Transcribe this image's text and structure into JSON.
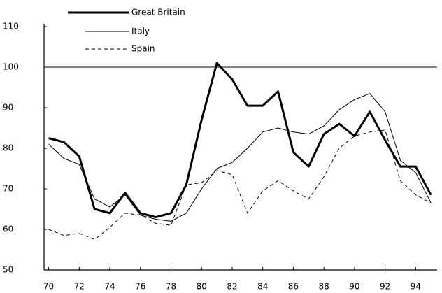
{
  "chart_data": {
    "type": "line",
    "x": [
      70,
      71,
      72,
      73,
      74,
      75,
      76,
      77,
      78,
      79,
      80,
      81,
      82,
      83,
      84,
      85,
      86,
      87,
      88,
      89,
      90,
      91,
      92,
      93,
      94,
      95
    ],
    "xticks": [
      70,
      72,
      74,
      76,
      78,
      80,
      82,
      84,
      86,
      88,
      90,
      92,
      94
    ],
    "xlim": [
      69.7,
      95.4
    ],
    "ylim": [
      50,
      110
    ],
    "yticks": [
      50,
      60,
      70,
      80,
      90,
      100,
      110
    ],
    "reference_line": 100,
    "series": [
      {
        "name": "Great Britain",
        "color": "#000000",
        "line_width": 3,
        "dashed": false,
        "values": [
          82.5,
          81.5,
          78,
          65,
          64,
          69,
          64,
          63,
          64,
          71,
          87,
          101,
          97,
          90.5,
          90.5,
          94,
          79,
          75.5,
          83.5,
          86,
          83,
          89,
          82,
          75.5,
          75.5,
          68.5
        ]
      },
      {
        "name": "Italy",
        "color": "#000000",
        "line_width": 1,
        "dashed": false,
        "values": [
          81,
          77.5,
          76,
          67.5,
          65.5,
          68.5,
          63.5,
          62.5,
          62,
          64,
          70,
          75,
          76.5,
          80,
          84,
          85,
          84,
          83.5,
          85.5,
          89.5,
          92,
          93.5,
          89,
          77,
          74,
          66.5
        ]
      },
      {
        "name": "Spain",
        "color": "#000000",
        "line_width": 1,
        "dashed": true,
        "values": [
          60,
          58.5,
          59,
          57.5,
          60.5,
          64,
          63.5,
          61.5,
          61,
          71,
          71.5,
          74.5,
          73.5,
          64,
          69.5,
          72,
          69.5,
          67.5,
          73,
          80,
          83,
          84,
          84.5,
          72,
          68.5,
          66.5
        ]
      }
    ]
  }
}
